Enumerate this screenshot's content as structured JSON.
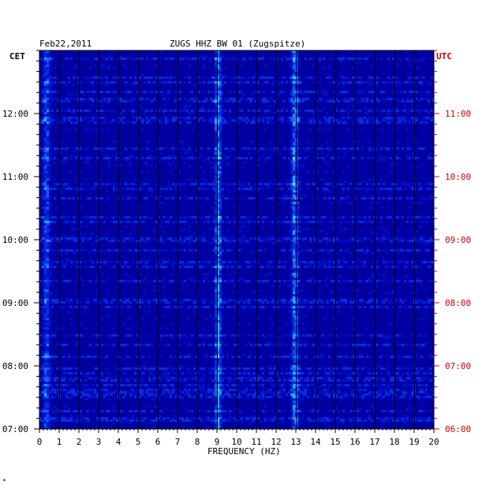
{
  "header": {
    "date": "Feb22,2011",
    "station": "ZUGS HHZ BW 01 (Zugspitze)",
    "left_tz": "CET",
    "right_tz": "UTC"
  },
  "chart_data": {
    "type": "heatmap",
    "title": "ZUGS HHZ BW 01 (Zugspitze)",
    "xlabel": "FREQUENCY (HZ)",
    "xlim": [
      0,
      20
    ],
    "x_ticks": [
      "0",
      "1",
      "2",
      "3",
      "4",
      "5",
      "6",
      "7",
      "8",
      "9",
      "10",
      "11",
      "12",
      "13",
      "14",
      "15",
      "16",
      "17",
      "18",
      "19",
      "20"
    ],
    "left_time_labels": [
      "12:00",
      "11:00",
      "10:00",
      "09:00",
      "08:00",
      "07:00"
    ],
    "right_time_labels": [
      "11:00",
      "10:00",
      "09:00",
      "08:00",
      "07:00",
      "06:00"
    ],
    "left_time_ticks_cet": [
      12,
      11,
      10,
      9,
      8,
      7
    ],
    "ylim_cet": [
      7,
      13
    ],
    "grid": true,
    "colors": {
      "background": "#0000c0",
      "low": "#0000a0",
      "mid": "#1a60ff",
      "high": "#00e0ff",
      "peak": "#ffff00",
      "max": "#ff2000",
      "utc_label": "#cc0000",
      "cet_label": "#000000"
    },
    "features": [
      {
        "name": "persistent line",
        "freq_hz": 9.0
      },
      {
        "name": "spectral line",
        "freq_hz": 12.9
      },
      {
        "name": "low-frequency band",
        "freq_hz": 0.3
      }
    ]
  },
  "footer_mark": "*"
}
